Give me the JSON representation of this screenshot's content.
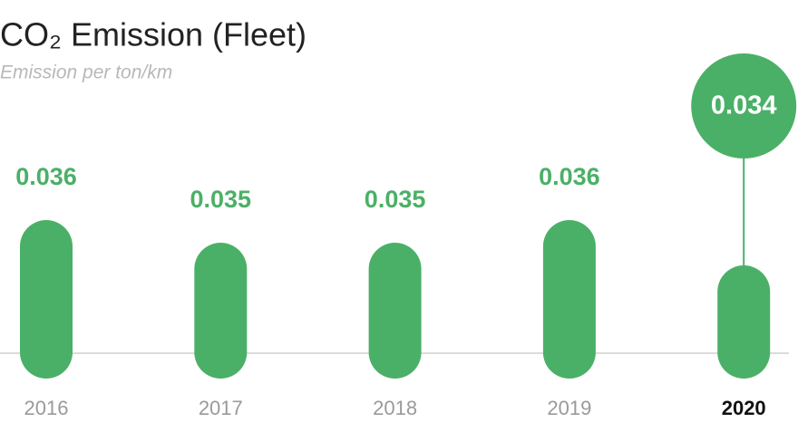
{
  "chart_data": {
    "type": "bar",
    "title": "CO₂ Emission (Fleet)",
    "subtitle": "Emission per ton/km",
    "categories": [
      "2016",
      "2017",
      "2018",
      "2019",
      "2020"
    ],
    "values": [
      0.036,
      0.035,
      0.035,
      0.036,
      0.034
    ],
    "color": "#4bb067",
    "highlight_index": 4
  }
}
